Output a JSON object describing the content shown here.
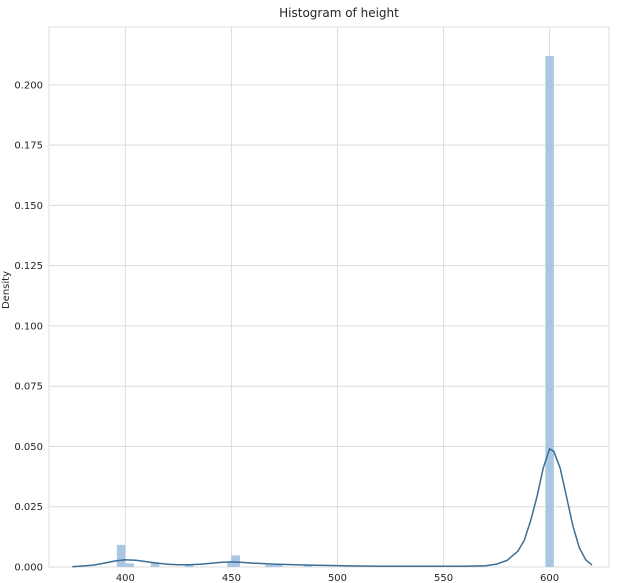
{
  "chart_data": {
    "type": "bar",
    "title": "Histogram of height",
    "xlabel": "",
    "ylabel": "Density",
    "xlim": [
      364,
      628
    ],
    "ylim": [
      0,
      0.224
    ],
    "xticks": [
      400,
      450,
      500,
      550,
      600
    ],
    "xtick_labels": [
      "400",
      "450",
      "500",
      "550",
      "600"
    ],
    "yticks": [
      0,
      0.025,
      0.05,
      0.075,
      0.1,
      0.125,
      0.15,
      0.175,
      0.2
    ],
    "ytick_labels": [
      "0.000",
      "0.025",
      "0.050",
      "0.075",
      "0.100",
      "0.125",
      "0.150",
      "0.175",
      "0.200"
    ],
    "grid": true,
    "bin_width": 4,
    "bins": [
      {
        "x": 396,
        "value": 0.0092
      },
      {
        "x": 400,
        "value": 0.0015
      },
      {
        "x": 412,
        "value": 0.0018
      },
      {
        "x": 428,
        "value": 0.001
      },
      {
        "x": 448,
        "value": 0.0018
      },
      {
        "x": 450,
        "value": 0.0048
      },
      {
        "x": 466,
        "value": 0.0009
      },
      {
        "x": 470,
        "value": 0.0009
      },
      {
        "x": 484,
        "value": 0.0006
      },
      {
        "x": 598,
        "value": 0.212
      }
    ],
    "kde": {
      "x": [
        375,
        385,
        390,
        395,
        400,
        405,
        410,
        415,
        420,
        425,
        430,
        435,
        440,
        445,
        450,
        455,
        460,
        470,
        480,
        490,
        500,
        510,
        520,
        530,
        540,
        550,
        560,
        570,
        575,
        580,
        585,
        588,
        591,
        594,
        597,
        600,
        602,
        605,
        608,
        611,
        614,
        617,
        620
      ],
      "y": [
        0.0001,
        0.0008,
        0.0016,
        0.0025,
        0.003,
        0.0028,
        0.0022,
        0.0016,
        0.0011,
        0.0009,
        0.0009,
        0.0011,
        0.0015,
        0.0019,
        0.0021,
        0.0019,
        0.0016,
        0.0012,
        0.0009,
        0.0007,
        0.0006,
        0.0004,
        0.0003,
        0.0003,
        0.0003,
        0.0003,
        0.0003,
        0.0005,
        0.0012,
        0.0028,
        0.0065,
        0.011,
        0.019,
        0.029,
        0.041,
        0.049,
        0.048,
        0.041,
        0.029,
        0.017,
        0.008,
        0.003,
        0.0008
      ]
    },
    "bar_color": "#a9c7e2",
    "kde_color": "#3a6e96",
    "grid_color": "#dcdcdc"
  }
}
